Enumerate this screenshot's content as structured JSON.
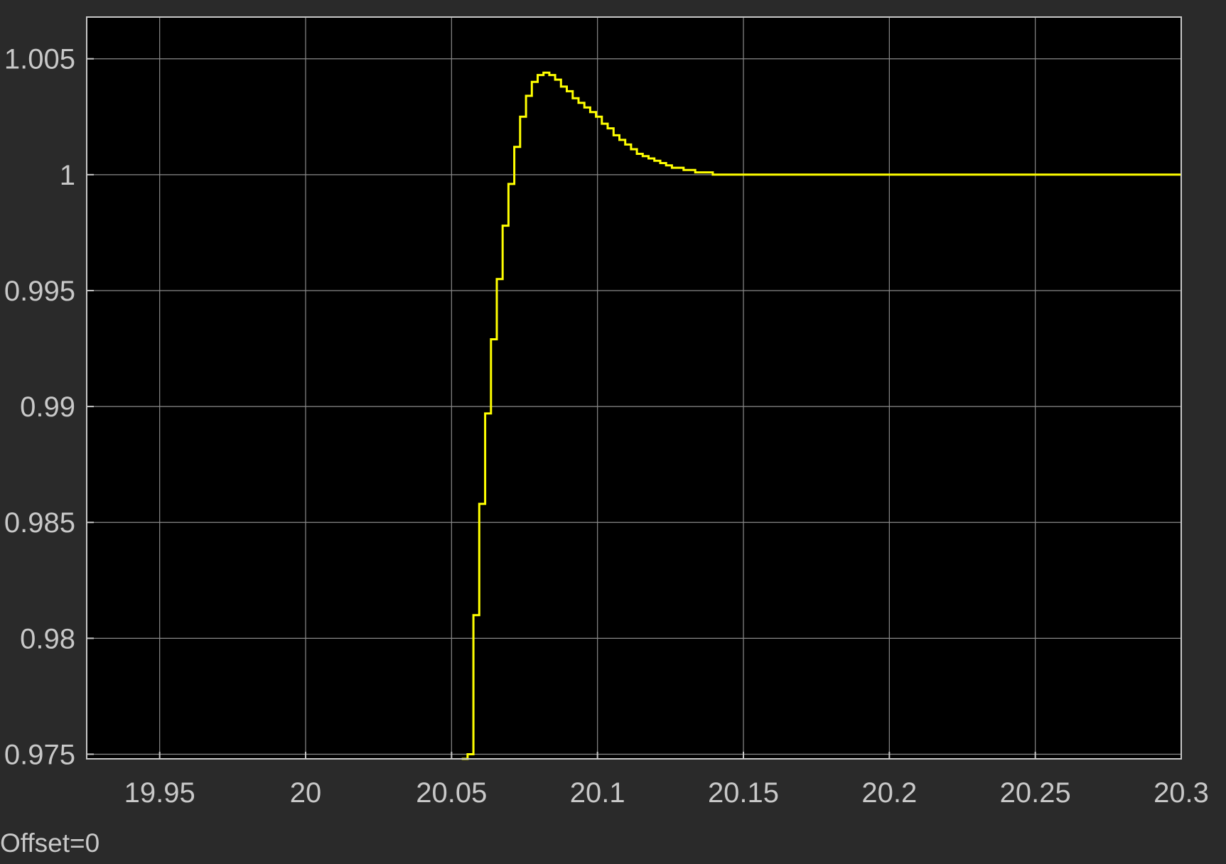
{
  "chart_data": {
    "type": "line",
    "title": "",
    "xlabel": "",
    "ylabel": "",
    "xlim": [
      19.925,
      20.3
    ],
    "ylim": [
      0.9748,
      1.0068
    ],
    "x_ticks": [
      {
        "value": 19.95,
        "label": "19.95"
      },
      {
        "value": 20.0,
        "label": "20"
      },
      {
        "value": 20.05,
        "label": "20.05"
      },
      {
        "value": 20.1,
        "label": "20.1"
      },
      {
        "value": 20.15,
        "label": "20.15"
      },
      {
        "value": 20.2,
        "label": "20.2"
      },
      {
        "value": 20.25,
        "label": "20.25"
      },
      {
        "value": 20.3,
        "label": "20.3"
      }
    ],
    "y_ticks": [
      {
        "value": 0.975,
        "label": "0.975"
      },
      {
        "value": 0.98,
        "label": "0.98"
      },
      {
        "value": 0.985,
        "label": "0.985"
      },
      {
        "value": 0.99,
        "label": "0.99"
      },
      {
        "value": 0.995,
        "label": "0.995"
      },
      {
        "value": 1.0,
        "label": "1"
      },
      {
        "value": 1.005,
        "label": "1.005"
      }
    ],
    "grid": true,
    "series": [
      {
        "color": "#ffff00",
        "step": true,
        "x": [
          20.0535,
          20.0555,
          20.0575,
          20.0595,
          20.0615,
          20.0635,
          20.0655,
          20.0675,
          20.0695,
          20.0715,
          20.0735,
          20.0755,
          20.0775,
          20.0795,
          20.0815,
          20.0835,
          20.0855,
          20.0875,
          20.0895,
          20.0915,
          20.0935,
          20.0955,
          20.0975,
          20.0995,
          20.1015,
          20.1035,
          20.1055,
          20.1075,
          20.1095,
          20.1115,
          20.1135,
          20.1155,
          20.1175,
          20.1195,
          20.1215,
          20.1235,
          20.1255,
          20.1275,
          20.1295,
          20.1315,
          20.1335,
          20.1355,
          20.1375,
          20.1395,
          20.1415,
          20.1435,
          20.1455,
          20.1475,
          20.3
        ],
        "y": [
          0.9748,
          0.975,
          0.981,
          0.9858,
          0.9897,
          0.9929,
          0.9955,
          0.9978,
          0.9996,
          1.0012,
          1.0025,
          1.0034,
          1.004,
          1.0043,
          1.0044,
          1.0043,
          1.0041,
          1.0038,
          1.0036,
          1.0033,
          1.0031,
          1.0029,
          1.0027,
          1.0025,
          1.0022,
          1.002,
          1.0017,
          1.0015,
          1.0013,
          1.0011,
          1.0009,
          1.0008,
          1.0007,
          1.0006,
          1.0005,
          1.0004,
          1.0003,
          1.0003,
          1.0002,
          1.0002,
          1.0001,
          1.0001,
          1.0001,
          1.0,
          1.0,
          1.0,
          1.0,
          1.0,
          1.0
        ]
      }
    ],
    "colors": {
      "background": "#2a2a2a",
      "axes": "#000000",
      "grid": "#8a8a8a",
      "axis_border": "#c8c8c8",
      "text": "#c8c8c8",
      "signal": "#ffff00"
    }
  },
  "footer": {
    "offset_text": "Offset=0"
  }
}
